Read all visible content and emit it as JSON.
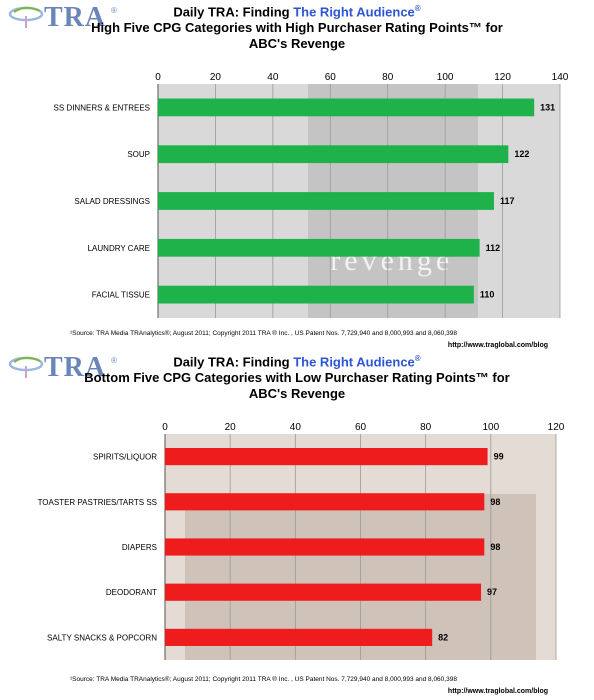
{
  "logo": {
    "text": "TRA",
    "mark": "®"
  },
  "panels": [
    {
      "title_prefix": "Daily TRA: Finding ",
      "title_accent": "The Right Audience",
      "title_reg": "®",
      "subtitle_line1": "High Five CPG Categories with High Purchaser Rating Points™ for",
      "subtitle_line2": "ABC's Revenge",
      "source": "¹Source:  TRA Media TRAnalytics®; August 2011; Copyright 2011 TRA ® Inc. , US Patent Nos. 7,729,940 and 8,000,993 and  8,060,398",
      "url": "http://www.traglobal.com/blog",
      "watermark": "revenge"
    },
    {
      "title_prefix": "Daily TRA: Finding ",
      "title_accent": "The Right Audience",
      "title_reg": "®",
      "subtitle_line1": "Bottom Five CPG Categories with Low Purchaser Rating Points™ for",
      "subtitle_line2": "ABC's Revenge",
      "source": "¹Source:  TRA Media TRAnalytics®; August 2011; Copyright 2011 TRA ® Inc. , US Patent Nos. 7,729,940 and 8,000,993 and  8,060,398",
      "url": "http://www.traglobal.com/blog"
    }
  ],
  "chart_data": [
    {
      "type": "bar",
      "orientation": "horizontal",
      "categories": [
        "SS DINNERS  & ENTREES",
        "SOUP",
        "SALAD DRESSINGS",
        "LAUNDRY  CARE",
        "FACIAL TISSUE"
      ],
      "values": [
        131,
        122,
        117,
        112,
        110
      ],
      "xlim": [
        0,
        140
      ],
      "ticks": [
        0,
        20,
        40,
        60,
        80,
        100,
        120,
        140
      ],
      "bar_color": "#1fb24a",
      "grid": true
    },
    {
      "type": "bar",
      "orientation": "horizontal",
      "categories": [
        "SPIRITS/LIQUOR",
        "TOASTER PASTRIES/TARTS  SS",
        "DIAPERS",
        "DEODORANT",
        "SALTY SNACKS & POPCORN"
      ],
      "values": [
        99,
        98,
        98,
        97,
        82
      ],
      "xlim": [
        0,
        120
      ],
      "ticks": [
        0,
        20,
        40,
        60,
        80,
        100,
        120
      ],
      "bar_color": "#ee1c1c",
      "grid": true
    }
  ]
}
